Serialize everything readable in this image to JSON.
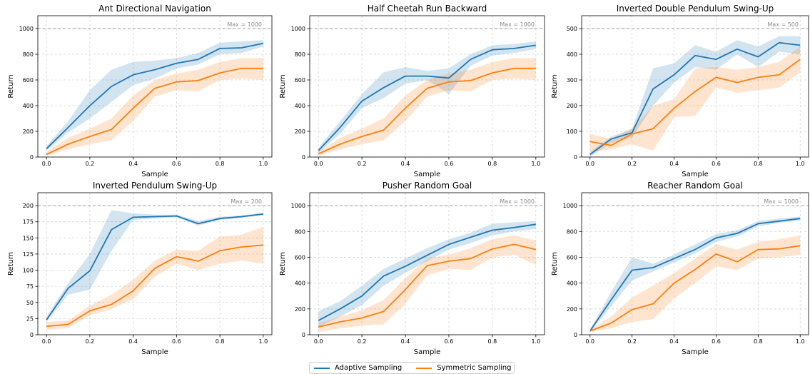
{
  "colors": {
    "adaptive": "#1f77b4",
    "symmetric": "#ff7f0e",
    "max_line": "#9a9a9a",
    "grid": "#d3d3d3"
  },
  "legend": {
    "adaptive_label": "Adaptive Sampling",
    "symmetric_label": "Symmetric Sampling",
    "placement": "bottom-center"
  },
  "chart_data": [
    {
      "type": "line",
      "title": "Ant Directional Navigation",
      "xlabel": "Sample",
      "ylabel": "Return",
      "xlim": [
        -0.04,
        1.04
      ],
      "ylim": [
        0,
        1100
      ],
      "xticks": [
        "0.0",
        "0.2",
        "0.4",
        "0.6",
        "0.8",
        "1.0"
      ],
      "yticks": [
        0,
        200,
        400,
        600,
        800,
        1000
      ],
      "max_label": "Max = 1000",
      "max_value": 1000,
      "grid": true,
      "x": [
        0.0,
        0.1,
        0.2,
        0.3,
        0.4,
        0.5,
        0.6,
        0.7,
        0.8,
        0.9,
        1.0
      ],
      "series": [
        {
          "name": "Adaptive Sampling",
          "values": [
            65,
            230,
            400,
            550,
            640,
            680,
            730,
            760,
            845,
            850,
            885
          ],
          "lower": [
            50,
            190,
            300,
            430,
            560,
            610,
            690,
            720,
            800,
            810,
            860
          ],
          "upper": [
            85,
            280,
            520,
            680,
            740,
            750,
            770,
            810,
            890,
            900,
            910
          ]
        },
        {
          "name": "Symmetric Sampling",
          "values": [
            20,
            100,
            160,
            215,
            380,
            535,
            585,
            595,
            655,
            690,
            690
          ],
          "lower": [
            10,
            60,
            100,
            130,
            280,
            470,
            520,
            510,
            600,
            610,
            600
          ],
          "upper": [
            40,
            150,
            220,
            300,
            480,
            600,
            650,
            680,
            740,
            770,
            770
          ]
        }
      ]
    },
    {
      "type": "line",
      "title": "Half Cheetah Run Backward",
      "xlabel": "Sample",
      "ylabel": "Return",
      "xlim": [
        -0.04,
        1.04
      ],
      "ylim": [
        0,
        1100
      ],
      "xticks": [
        "0.0",
        "0.2",
        "0.4",
        "0.6",
        "0.8",
        "1.0"
      ],
      "yticks": [
        0,
        200,
        400,
        600,
        800,
        1000
      ],
      "max_label": "Max = 1000",
      "max_value": 1000,
      "grid": true,
      "x": [
        0.0,
        0.1,
        0.2,
        0.3,
        0.4,
        0.5,
        0.6,
        0.7,
        0.8,
        0.9,
        1.0
      ],
      "series": [
        {
          "name": "Adaptive Sampling",
          "values": [
            50,
            230,
            435,
            540,
            630,
            630,
            615,
            760,
            835,
            845,
            870
          ],
          "lower": [
            30,
            180,
            380,
            460,
            570,
            600,
            490,
            710,
            790,
            810,
            840
          ],
          "upper": [
            70,
            280,
            490,
            660,
            700,
            670,
            690,
            800,
            870,
            880,
            900
          ]
        },
        {
          "name": "Symmetric Sampling",
          "values": [
            25,
            100,
            160,
            210,
            380,
            535,
            585,
            595,
            655,
            690,
            690
          ],
          "lower": [
            10,
            60,
            100,
            130,
            280,
            470,
            520,
            510,
            600,
            610,
            600
          ],
          "upper": [
            40,
            150,
            220,
            300,
            480,
            600,
            650,
            680,
            740,
            770,
            770
          ]
        }
      ]
    },
    {
      "type": "line",
      "title": "Inverted Double Pendulum Swing-Up",
      "xlabel": "Sample",
      "ylabel": "Return",
      "xlim": [
        -0.04,
        1.04
      ],
      "ylim": [
        0,
        550
      ],
      "xticks": [
        "0.0",
        "0.2",
        "0.4",
        "0.6",
        "0.8",
        "1.0"
      ],
      "yticks": [
        0,
        100,
        200,
        300,
        400,
        500
      ],
      "max_label": "Max = 500",
      "max_value": 500,
      "grid": true,
      "x": [
        0.0,
        0.1,
        0.2,
        0.3,
        0.4,
        0.5,
        0.6,
        0.7,
        0.8,
        0.9,
        1.0
      ],
      "series": [
        {
          "name": "Adaptive Sampling",
          "values": [
            10,
            70,
            95,
            265,
            320,
            395,
            380,
            420,
            390,
            445,
            435
          ],
          "lower": [
            0,
            55,
            75,
            200,
            290,
            350,
            340,
            400,
            350,
            410,
            400
          ],
          "upper": [
            20,
            80,
            110,
            345,
            365,
            435,
            410,
            455,
            430,
            470,
            470
          ]
        },
        {
          "name": "Symmetric Sampling",
          "values": [
            60,
            45,
            90,
            110,
            190,
            255,
            310,
            290,
            310,
            320,
            380
          ],
          "lower": [
            20,
            30,
            50,
            25,
            155,
            160,
            270,
            250,
            260,
            270,
            330
          ],
          "upper": [
            90,
            70,
            110,
            200,
            225,
            345,
            350,
            340,
            350,
            370,
            430
          ]
        }
      ]
    },
    {
      "type": "line",
      "title": "Inverted Pendulum Swing-Up",
      "xlabel": "Sample",
      "ylabel": "Return",
      "xlim": [
        -0.04,
        1.04
      ],
      "ylim": [
        0,
        220
      ],
      "xticks": [
        "0.0",
        "0.2",
        "0.4",
        "0.6",
        "0.8",
        "1.0"
      ],
      "yticks": [
        0,
        25,
        50,
        75,
        100,
        125,
        150,
        175,
        200
      ],
      "max_label": "Max = 200",
      "max_value": 200,
      "grid": true,
      "x": [
        0.0,
        0.1,
        0.2,
        0.3,
        0.4,
        0.5,
        0.6,
        0.7,
        0.8,
        0.9,
        1.0
      ],
      "series": [
        {
          "name": "Adaptive Sampling",
          "values": [
            23,
            72,
            99,
            163,
            182,
            183,
            184,
            172,
            180,
            183,
            187
          ],
          "lower": [
            20,
            62,
            70,
            130,
            178,
            180,
            182,
            169,
            178,
            181,
            185
          ],
          "upper": [
            28,
            80,
            125,
            193,
            188,
            186,
            186,
            176,
            183,
            185,
            189
          ]
        },
        {
          "name": "Symmetric Sampling",
          "values": [
            13,
            16,
            37,
            47,
            68,
            103,
            121,
            114,
            130,
            136,
            139
          ],
          "lower": [
            8,
            10,
            30,
            40,
            55,
            90,
            110,
            100,
            110,
            115,
            110
          ],
          "upper": [
            20,
            22,
            45,
            62,
            85,
            115,
            132,
            130,
            152,
            155,
            167
          ]
        }
      ]
    },
    {
      "type": "line",
      "title": "Pusher Random Goal",
      "xlabel": "Sample",
      "ylabel": "Return",
      "xlim": [
        -0.04,
        1.04
      ],
      "ylim": [
        0,
        1100
      ],
      "xticks": [
        "0.0",
        "0.2",
        "0.4",
        "0.6",
        "0.8",
        "1.0"
      ],
      "yticks": [
        0,
        200,
        400,
        600,
        800,
        1000
      ],
      "max_label": "Max = 1000",
      "max_value": 1000,
      "grid": true,
      "x": [
        0.0,
        0.1,
        0.2,
        0.3,
        0.4,
        0.5,
        0.6,
        0.7,
        0.8,
        0.9,
        1.0
      ],
      "series": [
        {
          "name": "Adaptive Sampling",
          "values": [
            110,
            200,
            300,
            455,
            530,
            615,
            700,
            755,
            810,
            830,
            855
          ],
          "lower": [
            60,
            140,
            230,
            380,
            480,
            570,
            660,
            710,
            770,
            800,
            820
          ],
          "upper": [
            180,
            260,
            380,
            510,
            590,
            670,
            740,
            790,
            860,
            870,
            880
          ]
        },
        {
          "name": "Symmetric Sampling",
          "values": [
            60,
            100,
            130,
            180,
            350,
            535,
            570,
            590,
            665,
            700,
            660
          ],
          "lower": [
            20,
            50,
            70,
            80,
            240,
            460,
            510,
            500,
            600,
            620,
            540
          ],
          "upper": [
            90,
            140,
            190,
            270,
            440,
            590,
            620,
            670,
            740,
            770,
            730
          ]
        }
      ]
    },
    {
      "type": "line",
      "title": "Reacher Random Goal",
      "xlabel": "Sample",
      "ylabel": "Return",
      "xlim": [
        -0.04,
        1.04
      ],
      "ylim": [
        0,
        1100
      ],
      "xticks": [
        "0.0",
        "0.2",
        "0.4",
        "0.6",
        "0.8",
        "1.0"
      ],
      "yticks": [
        0,
        200,
        400,
        600,
        800,
        1000
      ],
      "max_label": "Max = 1000",
      "max_value": 1000,
      "grid": true,
      "x": [
        0.0,
        0.1,
        0.2,
        0.3,
        0.4,
        0.5,
        0.6,
        0.7,
        0.8,
        0.9,
        1.0
      ],
      "series": [
        {
          "name": "Adaptive Sampling",
          "values": [
            30,
            270,
            500,
            520,
            590,
            660,
            750,
            785,
            860,
            880,
            900
          ],
          "lower": [
            20,
            220,
            420,
            490,
            560,
            630,
            720,
            760,
            840,
            865,
            885
          ],
          "upper": [
            40,
            330,
            600,
            550,
            620,
            700,
            780,
            810,
            880,
            900,
            915
          ]
        },
        {
          "name": "Symmetric Sampling",
          "values": [
            30,
            90,
            195,
            240,
            400,
            505,
            625,
            565,
            660,
            665,
            690
          ],
          "lower": [
            20,
            50,
            100,
            120,
            280,
            400,
            530,
            500,
            590,
            600,
            620
          ],
          "upper": [
            40,
            140,
            290,
            380,
            480,
            590,
            700,
            660,
            720,
            740,
            770
          ]
        }
      ]
    }
  ]
}
